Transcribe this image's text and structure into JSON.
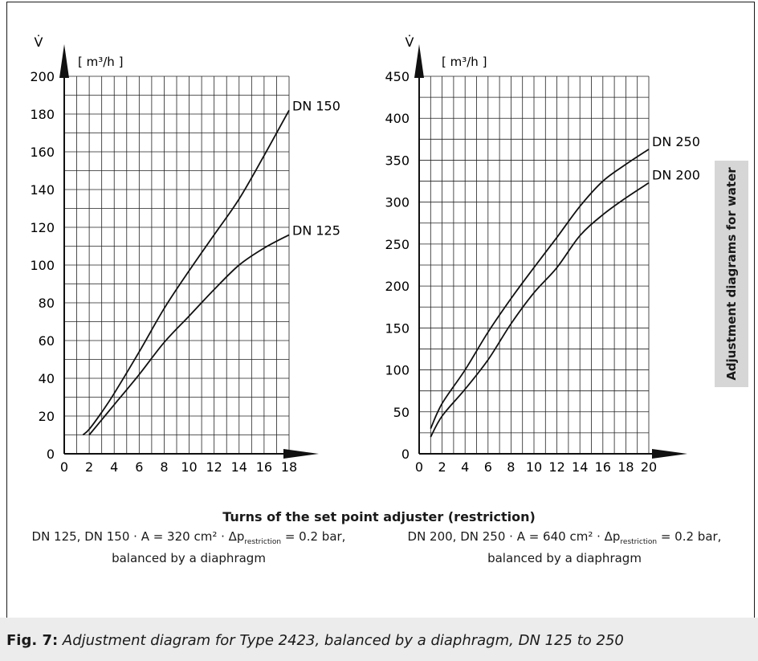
{
  "chart_data": [
    {
      "type": "line",
      "ylabel": "V̇",
      "yunit": "[ m³/h ]",
      "xlim": [
        0,
        18
      ],
      "ylim": [
        0,
        200
      ],
      "x_ticks": [
        "0",
        "2",
        "4",
        "6",
        "8",
        "10",
        "12",
        "14",
        "16",
        "18"
      ],
      "y_ticks": [
        "0",
        "20",
        "40",
        "60",
        "80",
        "100",
        "120",
        "140",
        "160",
        "180",
        "200"
      ],
      "grid": true,
      "series": [
        {
          "name": "DN 150",
          "x": [
            1.5,
            2,
            3,
            4,
            6,
            8,
            10,
            12,
            14,
            16,
            18
          ],
          "y": [
            10,
            13,
            22,
            32,
            54,
            77,
            97,
            116,
            135,
            158,
            182
          ]
        },
        {
          "name": "DN 125",
          "x": [
            2,
            3,
            4,
            6,
            8,
            10,
            12,
            14,
            16,
            18
          ],
          "y": [
            10,
            18,
            26,
            42,
            59,
            73,
            87,
            100,
            109,
            116
          ]
        }
      ]
    },
    {
      "type": "line",
      "ylabel": "V̇",
      "yunit": "[ m³/h ]",
      "xlim": [
        0,
        20
      ],
      "ylim": [
        0,
        450
      ],
      "x_ticks": [
        "0",
        "2",
        "4",
        "6",
        "8",
        "10",
        "12",
        "14",
        "16",
        "18",
        "20"
      ],
      "y_ticks": [
        "0",
        "50",
        "100",
        "150",
        "200",
        "250",
        "300",
        "350",
        "400",
        "450"
      ],
      "grid": true,
      "series": [
        {
          "name": "DN 250",
          "x": [
            1,
            2,
            4,
            6,
            8,
            10,
            12,
            14,
            16,
            18,
            20
          ],
          "y": [
            30,
            60,
            100,
            145,
            185,
            222,
            258,
            295,
            325,
            345,
            363
          ]
        },
        {
          "name": "DN 200",
          "x": [
            1,
            2,
            4,
            6,
            8,
            10,
            12,
            14,
            16,
            18,
            20
          ],
          "y": [
            20,
            45,
            77,
            112,
            155,
            192,
            222,
            260,
            285,
            305,
            323
          ]
        }
      ]
    }
  ],
  "xaxis_title": "Turns of the set point adjuster (restriction)",
  "notes": {
    "left": {
      "line1_pre": "DN 125, DN 150 · A = 320 cm² · Δp",
      "line1_sub": "restriction",
      "line1_post": " = 0.2 bar,",
      "line2": "balanced by a diaphragm"
    },
    "right": {
      "line1_pre": "DN 200, DN 250 · A = 640 cm² · Δp",
      "line1_sub": "restriction",
      "line1_post": " = 0.2 bar,",
      "line2": "balanced by a diaphragm"
    }
  },
  "side_label": "Adjustment diagrams for water",
  "caption": {
    "label": "Fig. 7:",
    "text": "Adjustment diagram for Type 2423, balanced by a diaphragm, DN 125 to 250"
  }
}
